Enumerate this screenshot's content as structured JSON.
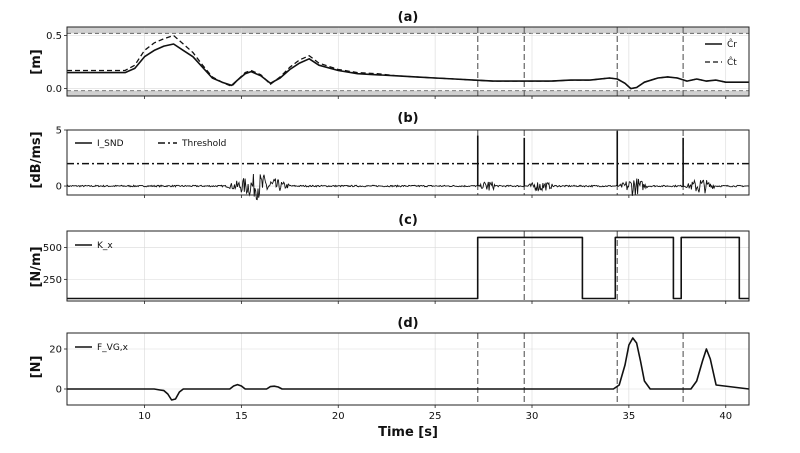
{
  "chart_data": [
    {
      "type": "line",
      "title": "(a)",
      "ylabel": "[m]",
      "xlim": [
        6,
        41.2
      ],
      "ylim": [
        -0.07,
        0.58
      ],
      "yticks": [
        "0.0",
        "0.5"
      ],
      "grid": true,
      "legend_position": "top-right",
      "bounds_band": {
        "lower": -0.02,
        "upper": 0.52
      },
      "event_lines": [
        27.2,
        29.6,
        34.4,
        37.8
      ],
      "series": [
        {
          "name": "Ĉr",
          "style": "solid",
          "x": [
            6,
            9,
            9.5,
            10,
            10.5,
            11,
            11.5,
            12,
            12.5,
            13,
            13.5,
            14,
            14.5,
            14.8,
            15.2,
            15.5,
            16,
            16.5,
            17,
            17.5,
            18,
            18.5,
            19,
            20,
            21,
            22,
            23,
            24,
            25,
            26,
            27,
            28,
            29,
            30,
            31,
            32,
            33,
            34,
            34.4,
            34.8,
            35.1,
            35.4,
            35.8,
            36.5,
            37,
            37.5,
            38,
            38.5,
            39,
            39.5,
            40,
            41.2
          ],
          "y": [
            0.15,
            0.15,
            0.19,
            0.3,
            0.36,
            0.4,
            0.42,
            0.36,
            0.3,
            0.2,
            0.1,
            0.06,
            0.03,
            0.08,
            0.14,
            0.16,
            0.12,
            0.05,
            0.1,
            0.18,
            0.24,
            0.28,
            0.22,
            0.17,
            0.14,
            0.13,
            0.12,
            0.11,
            0.1,
            0.09,
            0.08,
            0.07,
            0.07,
            0.07,
            0.07,
            0.08,
            0.08,
            0.1,
            0.09,
            0.05,
            0.0,
            0.01,
            0.06,
            0.1,
            0.11,
            0.1,
            0.07,
            0.09,
            0.07,
            0.08,
            0.06,
            0.06
          ]
        },
        {
          "name": "Ĉt",
          "style": "dashed",
          "x": [
            6,
            9,
            9.5,
            10,
            10.5,
            11,
            11.5,
            12,
            12.5,
            13,
            13.5,
            14,
            14.5,
            14.8,
            15.2,
            15.5,
            16,
            16.5,
            17,
            17.5,
            18,
            18.5,
            19,
            20,
            21,
            22,
            23,
            24,
            25,
            26,
            27,
            28,
            29,
            30,
            31,
            32,
            33,
            34,
            34.4,
            34.8,
            35.1,
            35.4,
            35.8,
            36.5,
            37,
            37.5,
            38,
            38.5,
            39,
            39.5,
            40,
            41.2
          ],
          "y": [
            0.17,
            0.17,
            0.22,
            0.36,
            0.43,
            0.47,
            0.5,
            0.42,
            0.34,
            0.22,
            0.11,
            0.06,
            0.02,
            0.08,
            0.15,
            0.17,
            0.13,
            0.04,
            0.11,
            0.2,
            0.27,
            0.31,
            0.24,
            0.18,
            0.15,
            0.14,
            0.12,
            0.11,
            0.1,
            0.09,
            0.08,
            0.07,
            0.07,
            0.07,
            0.07,
            0.08,
            0.08,
            0.1,
            0.09,
            0.05,
            0.0,
            0.01,
            0.06,
            0.1,
            0.11,
            0.1,
            0.07,
            0.09,
            0.07,
            0.08,
            0.06,
            0.06
          ]
        }
      ]
    },
    {
      "type": "line",
      "title": "(b)",
      "ylabel": "[dB/ms]",
      "xlim": [
        6,
        41.2
      ],
      "ylim": [
        -0.8,
        5
      ],
      "yticks": [
        "0",
        "5"
      ],
      "grid": true,
      "legend_position": "top-left",
      "threshold": 2,
      "spikes": [
        {
          "x": 27.2,
          "y": 4.5
        },
        {
          "x": 29.6,
          "y": 4.3
        },
        {
          "x": 34.4,
          "y": 4.9
        },
        {
          "x": 37.8,
          "y": 4.3
        }
      ],
      "noise_bursts": [
        {
          "from": 14.2,
          "to": 17.6,
          "amplitude": 1.2
        },
        {
          "from": 27.3,
          "to": 28.2,
          "amplitude": 0.6
        },
        {
          "from": 29.7,
          "to": 31.2,
          "amplitude": 0.5
        },
        {
          "from": 34.5,
          "to": 36.0,
          "amplitude": 0.9
        },
        {
          "from": 37.9,
          "to": 39.5,
          "amplitude": 0.8
        }
      ],
      "event_lines": [
        27.2,
        29.6,
        34.4,
        37.8
      ],
      "series": [
        {
          "name": "I_SND",
          "style": "solid"
        },
        {
          "name": "Threshold",
          "style": "dashdot"
        }
      ]
    },
    {
      "type": "line",
      "title": "(c)",
      "ylabel": "[N/m]",
      "xlim": [
        6,
        41.2
      ],
      "ylim": [
        80,
        630
      ],
      "yticks": [
        "250",
        "500"
      ],
      "grid": true,
      "legend_position": "top-left",
      "event_lines": [
        29.6,
        34.4
      ],
      "series": [
        {
          "name": "K_x",
          "style": "step",
          "x": [
            6,
            27.2,
            27.2,
            32.6,
            32.6,
            34.3,
            34.3,
            37.3,
            37.3,
            37.7,
            37.7,
            40.7,
            40.7,
            41.2
          ],
          "y": [
            100,
            100,
            580,
            580,
            100,
            100,
            580,
            580,
            100,
            100,
            580,
            580,
            100,
            100
          ]
        }
      ]
    },
    {
      "type": "line",
      "title": "(d)",
      "ylabel": "[N]",
      "xlabel": "Time [s]",
      "xlim": [
        6,
        41.2
      ],
      "ylim": [
        -8,
        28
      ],
      "yticks": [
        "0",
        "20"
      ],
      "xticks": [
        10,
        15,
        20,
        25,
        30,
        35,
        40
      ],
      "grid": true,
      "legend_position": "top-left",
      "event_lines": [
        27.2,
        29.6,
        34.4,
        37.8
      ],
      "series": [
        {
          "name": "F_VG,x",
          "style": "solid",
          "x": [
            6,
            10.5,
            10.8,
            11,
            11.2,
            11.4,
            11.6,
            11.8,
            12,
            14.4,
            14.6,
            14.8,
            15,
            15.2,
            16.3,
            16.5,
            16.7,
            16.9,
            17.1,
            34.2,
            34.5,
            34.8,
            35,
            35.2,
            35.4,
            35.6,
            35.8,
            36.1,
            38.2,
            38.5,
            38.8,
            39,
            39.2,
            39.5,
            41.2
          ],
          "y": [
            0,
            0,
            -0.5,
            -0.8,
            -2.5,
            -5.5,
            -5,
            -1.5,
            0,
            0,
            1.5,
            2.2,
            1.5,
            0,
            0,
            1.2,
            1.4,
            1,
            0,
            0,
            2,
            12,
            22,
            25.5,
            23,
            14,
            4,
            0,
            0,
            4,
            14,
            20,
            15,
            2,
            0
          ]
        }
      ]
    }
  ]
}
